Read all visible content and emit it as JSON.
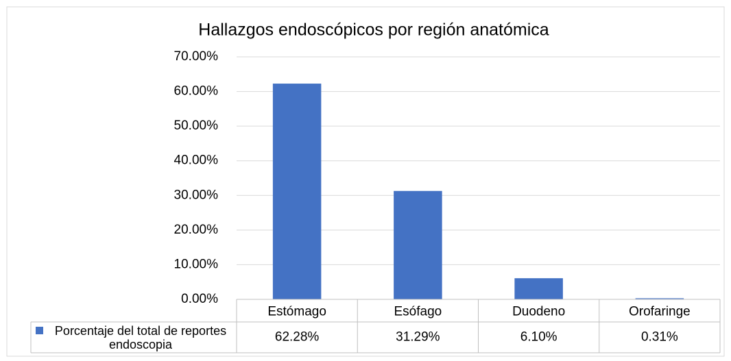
{
  "chart_data": {
    "type": "bar",
    "title": "Hallazgos endoscópicos por región anatómica",
    "categories": [
      "Estómago",
      "Esófago",
      "Duodeno",
      "Orofaringe"
    ],
    "series": [
      {
        "name": "Porcentaje del total de reportes endoscopia",
        "color": "#4472c4",
        "values": [
          62.28,
          31.29,
          6.1,
          0.31
        ],
        "value_labels": [
          "62.28%",
          "31.29%",
          "6.10%",
          "0.31%"
        ]
      }
    ],
    "ylim": [
      0,
      70
    ],
    "yticks": [
      {
        "value": 0,
        "label": "0.00%"
      },
      {
        "value": 10,
        "label": "10.00%"
      },
      {
        "value": 20,
        "label": "20.00%"
      },
      {
        "value": 30,
        "label": "30.00%"
      },
      {
        "value": 40,
        "label": "40.00%"
      },
      {
        "value": 50,
        "label": "50.00%"
      },
      {
        "value": 60,
        "label": "60.00%"
      },
      {
        "value": 70,
        "label": "70.00%"
      }
    ],
    "grid": true
  }
}
